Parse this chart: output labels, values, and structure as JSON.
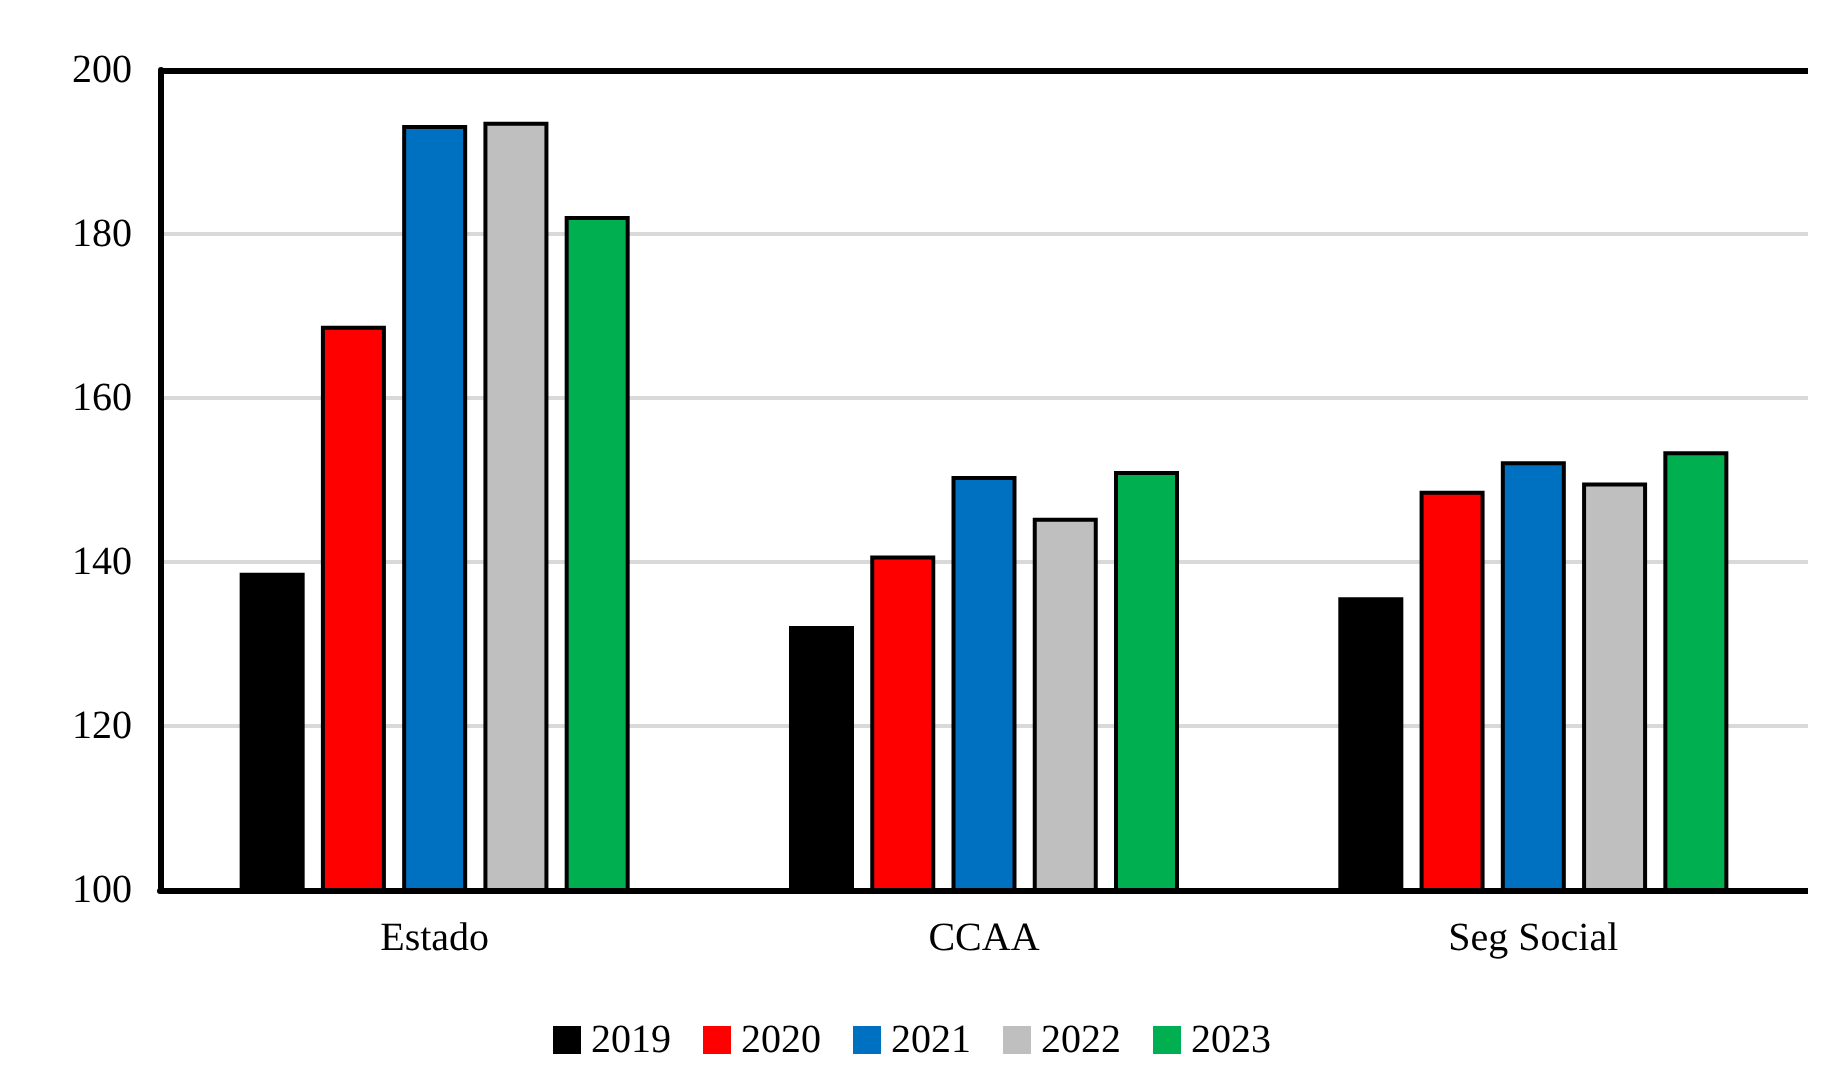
{
  "chart_data": {
    "type": "bar",
    "categories": [
      "Estado",
      "CCAA",
      "Seg Social"
    ],
    "series": [
      {
        "name": "2019",
        "color": "#000000",
        "values": [
          138.7,
          132.2,
          135.7
        ]
      },
      {
        "name": "2020",
        "color": "#ff0000",
        "values": [
          168.8,
          140.8,
          148.7
        ]
      },
      {
        "name": "2021",
        "color": "#0070c0",
        "values": [
          193.3,
          150.5,
          152.3
        ]
      },
      {
        "name": "2022",
        "color": "#bfbfbf",
        "values": [
          193.7,
          145.4,
          149.7
        ]
      },
      {
        "name": "2023",
        "color": "#00b050",
        "values": [
          182.2,
          151.1,
          153.5
        ]
      }
    ],
    "ylim": [
      100,
      200
    ],
    "yticks": [
      100,
      120,
      140,
      160,
      180,
      200
    ],
    "grid": "y",
    "legend": "bottom"
  }
}
